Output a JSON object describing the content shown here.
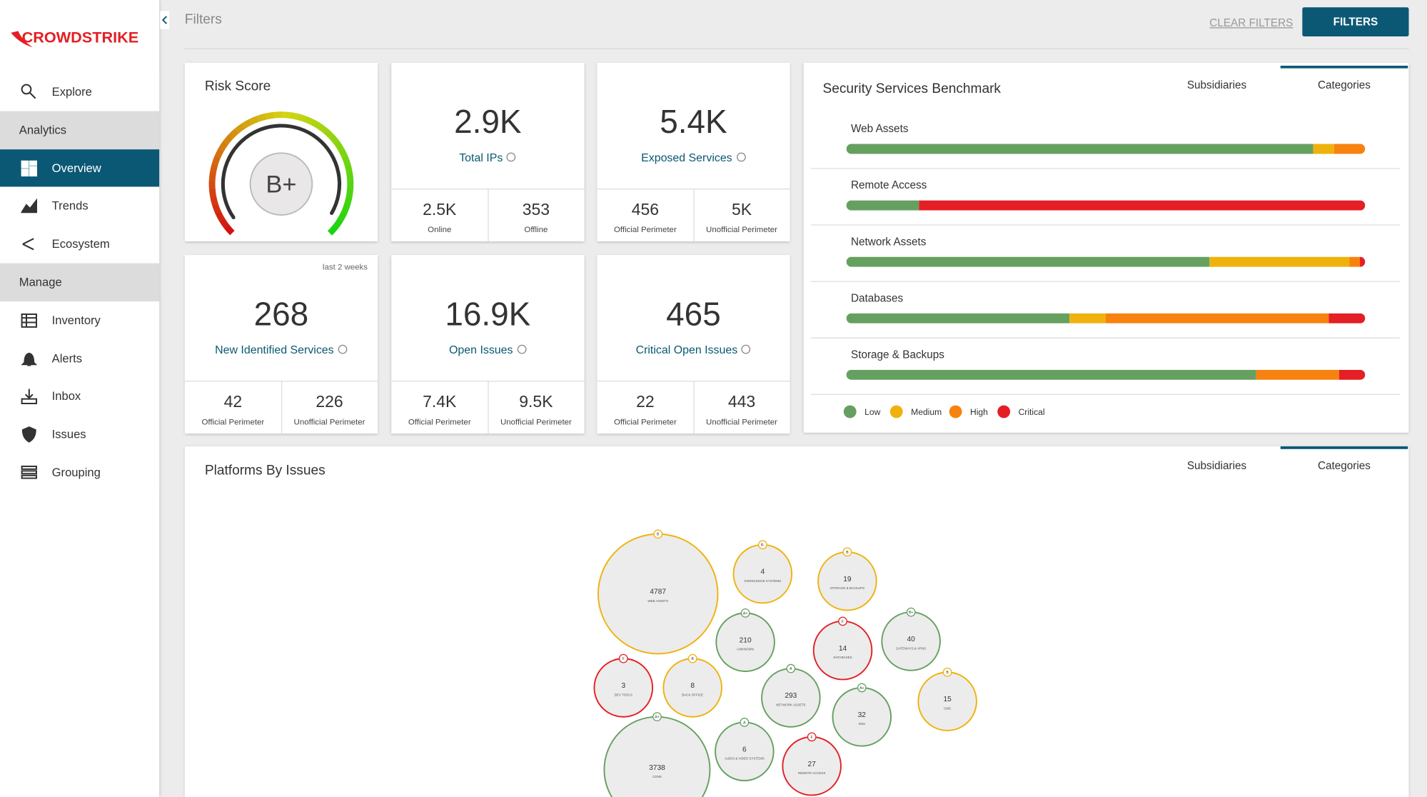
{
  "sidebar": {
    "logo": "CROWDSTRIKE",
    "items": [
      "Explore",
      "Analytics",
      "Overview",
      "Trends",
      "Ecosystem",
      "Manage",
      "Inventory",
      "Alerts",
      "Inbox",
      "Issues",
      "Grouping"
    ],
    "section_indexes": [
      1,
      5
    ],
    "active_index": 2
  },
  "header": {
    "title": "Filters",
    "clear": "CLEAR FILTERS",
    "button": "FILTERS"
  },
  "risk_score": {
    "title": "Risk Score",
    "grade": "B+"
  },
  "stats": [
    {
      "value": "2.9K",
      "label": "Total IPs",
      "sub": [
        {
          "value": "2.5K",
          "label": "Online"
        },
        {
          "value": "353",
          "label": "Offline"
        }
      ]
    },
    {
      "value": "5.4K",
      "label": "Exposed Services",
      "sub": [
        {
          "value": "456",
          "label": "Official Perimeter"
        },
        {
          "value": "5K",
          "label": "Unofficial Perimeter"
        }
      ]
    },
    {
      "value": "268",
      "label": "New Identified Services",
      "note": "last 2 weeks",
      "sub": [
        {
          "value": "42",
          "label": "Official Perimeter"
        },
        {
          "value": "226",
          "label": "Unofficial Perimeter"
        }
      ]
    },
    {
      "value": "16.9K",
      "label": "Open Issues",
      "sub": [
        {
          "value": "7.4K",
          "label": "Official Perimeter"
        },
        {
          "value": "9.5K",
          "label": "Unofficial Perimeter"
        }
      ]
    },
    {
      "value": "465",
      "label": "Critical Open Issues",
      "sub": [
        {
          "value": "22",
          "label": "Official Perimeter"
        },
        {
          "value": "443",
          "label": "Unofficial Perimeter"
        }
      ]
    }
  ],
  "benchmark": {
    "type": "bar",
    "title": "Security Services Benchmark",
    "tabs": [
      "Subsidiaries",
      "Categories"
    ],
    "active_tab": 1,
    "categories": [
      "Web Assets",
      "Remote Access",
      "Network Assets",
      "Databases",
      "Storage & Backups"
    ],
    "xlim": [
      0,
      100
    ],
    "series": [
      {
        "name": "Low",
        "color": "#66a060",
        "values": [
          90,
          14,
          70,
          43,
          79
        ]
      },
      {
        "name": "Medium",
        "color": "#efb20c",
        "values": [
          4,
          0,
          27,
          7,
          0
        ]
      },
      {
        "name": "High",
        "color": "#f7820f",
        "values": [
          6,
          0,
          2,
          43,
          16
        ]
      },
      {
        "name": "Critical",
        "color": "#e41f25",
        "values": [
          0,
          86,
          1,
          7,
          5
        ]
      }
    ]
  },
  "platforms": {
    "type": "bubble",
    "title": "Platforms By Issues",
    "tabs": [
      "Subsidiaries",
      "Categories"
    ],
    "active_tab": 1,
    "bubbles": [
      {
        "value": 4787,
        "label": "WEB ASSETS",
        "grade": "B",
        "color": "#efb20c"
      },
      {
        "value": 4,
        "label": "KNOWLEDGE SYSTEMS",
        "grade": "B-",
        "color": "#efb20c"
      },
      {
        "value": 19,
        "label": "STORAGE & BACKUPS",
        "grade": "B",
        "color": "#efb20c"
      },
      {
        "value": 210,
        "label": "UNKNOWN",
        "grade": "A+",
        "color": "#66a060"
      },
      {
        "value": 14,
        "label": "DATABASES",
        "grade": "F",
        "color": "#e41f25"
      },
      {
        "value": 40,
        "label": "GATEWAYS & VPNS",
        "grade": "B+",
        "color": "#66a060"
      },
      {
        "value": 3,
        "label": "DEV TOOLS",
        "grade": "F",
        "color": "#e41f25"
      },
      {
        "value": 8,
        "label": "BACK OFFICE",
        "grade": "B",
        "color": "#efb20c"
      },
      {
        "value": 293,
        "label": "NETWORK ASSETS",
        "grade": "A",
        "color": "#66a060"
      },
      {
        "value": 32,
        "label": "DNS",
        "grade": "A+",
        "color": "#66a060"
      },
      {
        "value": 15,
        "label": "CMS",
        "grade": "B",
        "color": "#efb20c"
      },
      {
        "value": 3738,
        "label": "CDNS",
        "grade": "A+",
        "color": "#66a060"
      },
      {
        "value": 6,
        "label": "AUDIO & VIDEO SYSTEMS",
        "grade": "A",
        "color": "#66a060"
      },
      {
        "value": 27,
        "label": "REMOTE ACCESS",
        "grade": "F",
        "color": "#e41f25"
      }
    ]
  }
}
